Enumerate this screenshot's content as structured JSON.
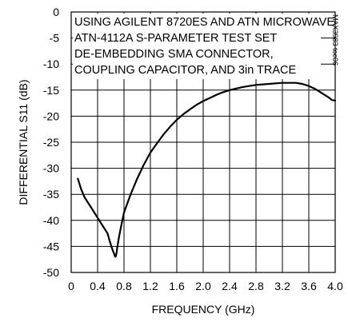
{
  "chart_data": {
    "type": "line",
    "xlabel": "FREQUENCY (GHz)",
    "ylabel": "DIFFERENTIAL S11 (dB)",
    "xlim": [
      0,
      4.0
    ],
    "ylim": [
      -50,
      0
    ],
    "x_ticks": [
      "0",
      "0.4",
      "0.8",
      "1.2",
      "1.6",
      "2.0",
      "2.4",
      "2.8",
      "3.2",
      "3.6",
      "4.0"
    ],
    "y_ticks": [
      "0",
      "-5",
      "-10",
      "-15",
      "-20",
      "-25",
      "-30",
      "-35",
      "-40",
      "-45",
      "-50"
    ],
    "grid": true,
    "annotation_lines": [
      "USING AGILENT 8720ES AND ATN MICROWAVE",
      "ATN-4112A S-PARAMETER TEST SET",
      "DE-EMBEDDING SMA CONNECTOR,",
      "COUPLING CAPACITOR, AND 3in TRACE"
    ],
    "figure_code": "MAX3983 toc06",
    "series": [
      {
        "x": [
          0.1,
          0.15,
          0.2,
          0.25,
          0.3,
          0.35,
          0.4,
          0.45,
          0.5,
          0.55,
          0.58,
          0.61,
          0.63,
          0.65,
          0.66,
          0.67,
          0.68,
          0.69,
          0.7,
          0.72,
          0.75,
          0.8,
          0.9,
          1.0,
          1.1,
          1.2,
          1.3,
          1.4,
          1.5,
          1.6,
          1.7,
          1.8,
          1.9,
          2.0,
          2.1,
          2.2,
          2.3,
          2.4,
          2.5,
          2.6,
          2.7,
          2.8,
          2.9,
          3.0,
          3.1,
          3.2,
          3.3,
          3.4,
          3.5,
          3.6,
          3.7,
          3.8,
          3.9,
          3.95,
          4.0
        ],
        "y": [
          -32,
          -34,
          -35.5,
          -36.5,
          -37.5,
          -38.5,
          -39.5,
          -40.5,
          -41.5,
          -42.5,
          -43.8,
          -45.0,
          -45.8,
          -46.4,
          -46.8,
          -47.0,
          -46.7,
          -46.0,
          -45.0,
          -43.5,
          -41.5,
          -38.5,
          -35.0,
          -32.0,
          -29.3,
          -27.0,
          -25.2,
          -23.5,
          -22.0,
          -20.7,
          -19.6,
          -18.7,
          -17.8,
          -17.1,
          -16.5,
          -15.9,
          -15.4,
          -15.0,
          -14.7,
          -14.4,
          -14.2,
          -14.0,
          -13.9,
          -13.8,
          -13.7,
          -13.6,
          -13.6,
          -13.6,
          -13.8,
          -14.2,
          -14.8,
          -15.6,
          -16.4,
          -16.9,
          -17.0
        ]
      }
    ]
  }
}
